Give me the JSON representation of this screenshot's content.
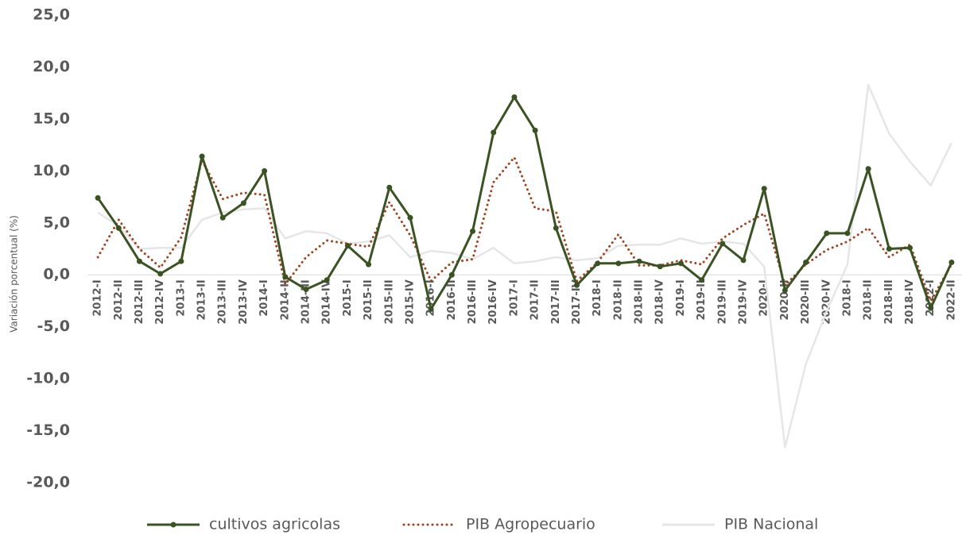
{
  "chart_data": {
    "type": "line",
    "y_axis_label": "Variación porcentual (%)",
    "categories": [
      "2012-I",
      "2012-II",
      "2012-III",
      "2012-IV",
      "2013-I",
      "2013-II",
      "2013-III",
      "2013-IV",
      "2014-I",
      "2014-II",
      "2014-III",
      "2014-IV",
      "2015-I",
      "2015-II",
      "2015-III",
      "2015-IV",
      "2016-I",
      "2016-II",
      "2016-III",
      "2016-IV",
      "2017-I",
      "2017-II",
      "2017-III",
      "2017-IV",
      "2018-I",
      "2018-II",
      "2018-III",
      "2018-IV",
      "2019-I",
      "2019-II",
      "2019-III",
      "2019-IV",
      "2020-I",
      "2020-II",
      "2020-III",
      "2020-IV",
      "2018-I",
      "2018-II",
      "2018-III",
      "2018-IV",
      "2022-I",
      "2022-II"
    ],
    "series": [
      {
        "name": "cultivos agricolas",
        "color": "#3b5323",
        "style": "solid-markers",
        "values": [
          7.4,
          4.5,
          1.3,
          0.1,
          1.3,
          11.4,
          5.5,
          6.9,
          10.0,
          -0.2,
          -1.4,
          -0.5,
          2.8,
          1.0,
          8.4,
          5.5,
          -3.3,
          0.0,
          4.2,
          13.7,
          17.1,
          13.9,
          4.5,
          -1.0,
          1.1,
          1.1,
          1.3,
          0.8,
          1.1,
          -0.5,
          3.0,
          1.4,
          8.3,
          -1.5,
          1.2,
          4.0,
          4.0,
          10.2,
          2.5,
          2.6,
          -3.2,
          1.2
        ]
      },
      {
        "name": "PIB Agropecuario",
        "color": "#a0421e",
        "style": "dotted",
        "values": [
          1.7,
          5.3,
          2.5,
          0.7,
          3.6,
          11.0,
          7.3,
          7.9,
          7.7,
          -0.9,
          1.7,
          3.3,
          3.0,
          2.7,
          7.0,
          3.8,
          -0.6,
          1.2,
          1.5,
          8.9,
          11.3,
          6.4,
          6.1,
          -0.6,
          1.2,
          3.9,
          0.9,
          0.9,
          1.4,
          1.0,
          3.5,
          4.8,
          5.9,
          -1.0,
          1.0,
          2.4,
          3.2,
          4.5,
          1.7,
          2.9,
          -2.5,
          1.0
        ]
      },
      {
        "name": "PIB Nacional",
        "color": "#e6e6e6",
        "style": "solid",
        "values": [
          6.0,
          4.7,
          2.5,
          2.6,
          2.6,
          5.3,
          6.0,
          6.3,
          6.4,
          3.5,
          4.2,
          4.0,
          3.0,
          3.2,
          3.8,
          1.7,
          2.3,
          2.1,
          1.5,
          2.6,
          1.1,
          1.3,
          1.7,
          1.4,
          1.6,
          2.8,
          2.9,
          2.9,
          3.5,
          3.0,
          3.2,
          3.0,
          0.8,
          -16.6,
          -8.6,
          -3.5,
          1.0,
          18.3,
          13.6,
          10.9,
          8.6,
          12.7
        ]
      }
    ],
    "ylim": [
      -20,
      25
    ],
    "yticks": [
      {
        "value": -20,
        "label": "-20,0"
      },
      {
        "value": -15,
        "label": "-15,0"
      },
      {
        "value": -10,
        "label": "-10,0"
      },
      {
        "value": -5,
        "label": "-5,0"
      },
      {
        "value": 0,
        "label": "0,0"
      },
      {
        "value": 5,
        "label": "5,0"
      },
      {
        "value": 10,
        "label": "10,0"
      },
      {
        "value": 15,
        "label": "15,0"
      },
      {
        "value": 20,
        "label": "20,0"
      },
      {
        "value": 25,
        "label": "25,0"
      }
    ],
    "legend": "bottom"
  }
}
